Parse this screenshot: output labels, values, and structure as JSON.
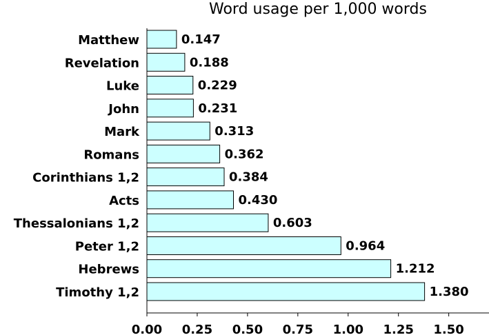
{
  "chart_data": {
    "type": "bar",
    "orientation": "horizontal",
    "title": "Word usage per 1,000 words",
    "xlabel": "",
    "ylabel": "",
    "categories": [
      "Matthew",
      "Revelation",
      "Luke",
      "John",
      "Mark",
      "Romans",
      "Corinthians 1,2",
      "Acts",
      "Thessalonians 1,2",
      "Peter 1,2",
      "Hebrews",
      "Timothy 1,2"
    ],
    "values": [
      0.147,
      0.188,
      0.229,
      0.231,
      0.313,
      0.362,
      0.384,
      0.43,
      0.603,
      0.964,
      1.212,
      1.38
    ],
    "value_labels": [
      "0.147",
      "0.188",
      "0.229",
      "0.231",
      "0.313",
      "0.362",
      "0.384",
      "0.430",
      "0.603",
      "0.964",
      "1.212",
      "1.380"
    ],
    "xlim": [
      0,
      1.7
    ],
    "xticks": [
      0.0,
      0.25,
      0.5,
      0.75,
      1.0,
      1.25,
      1.5
    ],
    "xtick_labels": [
      "0.00",
      "0.25",
      "0.50",
      "0.75",
      "1.00",
      "1.25",
      "1.50"
    ],
    "grid": false,
    "legend": "none",
    "bar_color": "#ccffff",
    "bar_edge_color": "#000000"
  }
}
